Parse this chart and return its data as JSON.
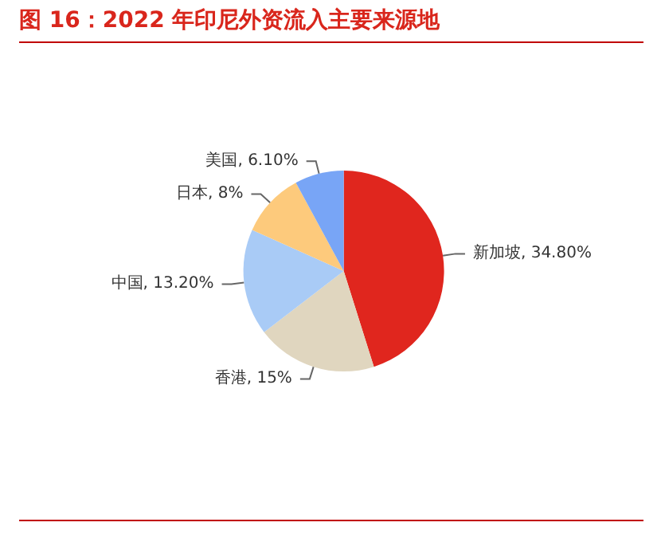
{
  "chart_data": {
    "type": "pie",
    "title": "图 16：2022 年印尼外资流入主要来源地",
    "categories": [
      "新加坡",
      "香港",
      "中国",
      "日本",
      "美国"
    ],
    "values": [
      34.8,
      15,
      13.2,
      8,
      6.1
    ],
    "value_labels": [
      "34.80%",
      "15%",
      "13.20%",
      "8%",
      "6.10%"
    ],
    "colors": [
      "#e0261e",
      "#e0d6bf",
      "#a9cbf6",
      "#fdca7c",
      "#78a5f6"
    ],
    "legend": false
  }
}
